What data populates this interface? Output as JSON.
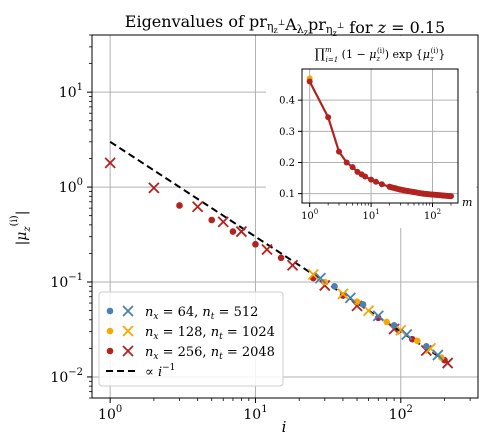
{
  "chart_data": [
    {
      "type": "scatter",
      "title": "Eigenvalues of pr_{η_z^⊥} A_{λ_z} pr_{η_z^⊥} for z = 0.15",
      "xlabel": "i",
      "ylabel": "|μ_z^{(i)}|",
      "xscale": "log",
      "yscale": "log",
      "xlim": [
        0.75,
        340
      ],
      "ylim": [
        0.006,
        40
      ],
      "grid": true,
      "legend_position": "lower-left",
      "x_tick_labels": [
        "10^0",
        "10^1",
        "10^2"
      ],
      "y_tick_labels": [
        "10^-2",
        "10^-1",
        "10^0",
        "10^1"
      ],
      "legend": [
        {
          "label": "n_x = 64, n_t = 512",
          "color": "#4682b4",
          "markers": [
            "dot",
            "cross"
          ]
        },
        {
          "label": "n_x = 128, n_t = 1024",
          "color": "#f5a800",
          "markers": [
            "dot",
            "cross"
          ]
        },
        {
          "label": "n_x = 256, n_t = 2048",
          "color": "#b2221f",
          "markers": [
            "dot",
            "cross"
          ]
        },
        {
          "label": "∝ i^-1",
          "color": "#000000",
          "markers": [
            "dashed-line"
          ]
        }
      ],
      "series": [
        {
          "name": "n_x = 256, n_t = 2048",
          "color": "#b2221f",
          "dots": [
            [
              3,
              0.64
            ],
            [
              5,
              0.45
            ],
            [
              7,
              0.34
            ],
            [
              10,
              0.25
            ],
            [
              15,
              0.18
            ],
            [
              25,
              0.11
            ],
            [
              40,
              0.072
            ],
            [
              70,
              0.042
            ],
            [
              120,
              0.025
            ],
            [
              200,
              0.015
            ]
          ],
          "crosses": [
            [
              1,
              1.8
            ],
            [
              2,
              0.98
            ],
            [
              4,
              0.62
            ],
            [
              6,
              0.43
            ],
            [
              8,
              0.34
            ],
            [
              12,
              0.22
            ],
            [
              18,
              0.15
            ],
            [
              30,
              0.092
            ],
            [
              50,
              0.056
            ],
            [
              90,
              0.032
            ],
            [
              150,
              0.019
            ],
            [
              210,
              0.014
            ]
          ]
        },
        {
          "name": "n_x = 128, n_t = 1024",
          "color": "#f5a800",
          "dots": [
            [
              30,
              0.1
            ],
            [
              50,
              0.062
            ],
            [
              80,
              0.038
            ],
            [
              130,
              0.024
            ],
            [
              190,
              0.016
            ]
          ],
          "crosses": [
            [
              25,
              0.12
            ],
            [
              40,
              0.075
            ],
            [
              60,
              0.05
            ],
            [
              100,
              0.031
            ],
            [
              160,
              0.02
            ]
          ]
        },
        {
          "name": "n_x = 64, n_t = 512",
          "color": "#4682b4",
          "dots": [
            [
              35,
              0.09
            ],
            [
              55,
              0.058
            ],
            [
              90,
              0.035
            ],
            [
              150,
              0.021
            ]
          ],
          "crosses": [
            [
              28,
              0.11
            ],
            [
              45,
              0.068
            ],
            [
              70,
              0.044
            ],
            [
              110,
              0.028
            ],
            [
              180,
              0.017
            ]
          ]
        },
        {
          "name": "∝ i^-1",
          "color": "#000000",
          "line": [
            [
              1,
              3.0
            ],
            [
              210,
              0.0143
            ]
          ]
        }
      ]
    },
    {
      "type": "line",
      "title": "∏_{i=1}^{m} (1 − μ_z^{(i)}) exp{μ_z^{(i)}}",
      "xlabel": "m",
      "ylabel": "",
      "xscale": "log",
      "xlim": [
        0.75,
        260
      ],
      "ylim": [
        0.07,
        0.5
      ],
      "grid": true,
      "x_tick_labels": [
        "10^0",
        "10^1",
        "10^2"
      ],
      "y_tick_labels": [
        "0.1",
        "0.2",
        "0.3",
        "0.4"
      ],
      "series": [
        {
          "name": "n_x = 256, n_t = 2048",
          "color": "#b2221f",
          "x": [
            1,
            2,
            3,
            4,
            5,
            6,
            7,
            8,
            10,
            12,
            15,
            20,
            25,
            30,
            40,
            50,
            70,
            100,
            150,
            200
          ],
          "y": [
            0.46,
            0.345,
            0.235,
            0.2,
            0.185,
            0.17,
            0.162,
            0.155,
            0.145,
            0.138,
            0.13,
            0.122,
            0.117,
            0.113,
            0.108,
            0.105,
            0.1,
            0.097,
            0.094,
            0.092
          ]
        },
        {
          "name": "n_x = 128, n_t = 1024",
          "color": "#f5a800",
          "x": [
            1
          ],
          "y": [
            0.47
          ]
        }
      ]
    }
  ]
}
